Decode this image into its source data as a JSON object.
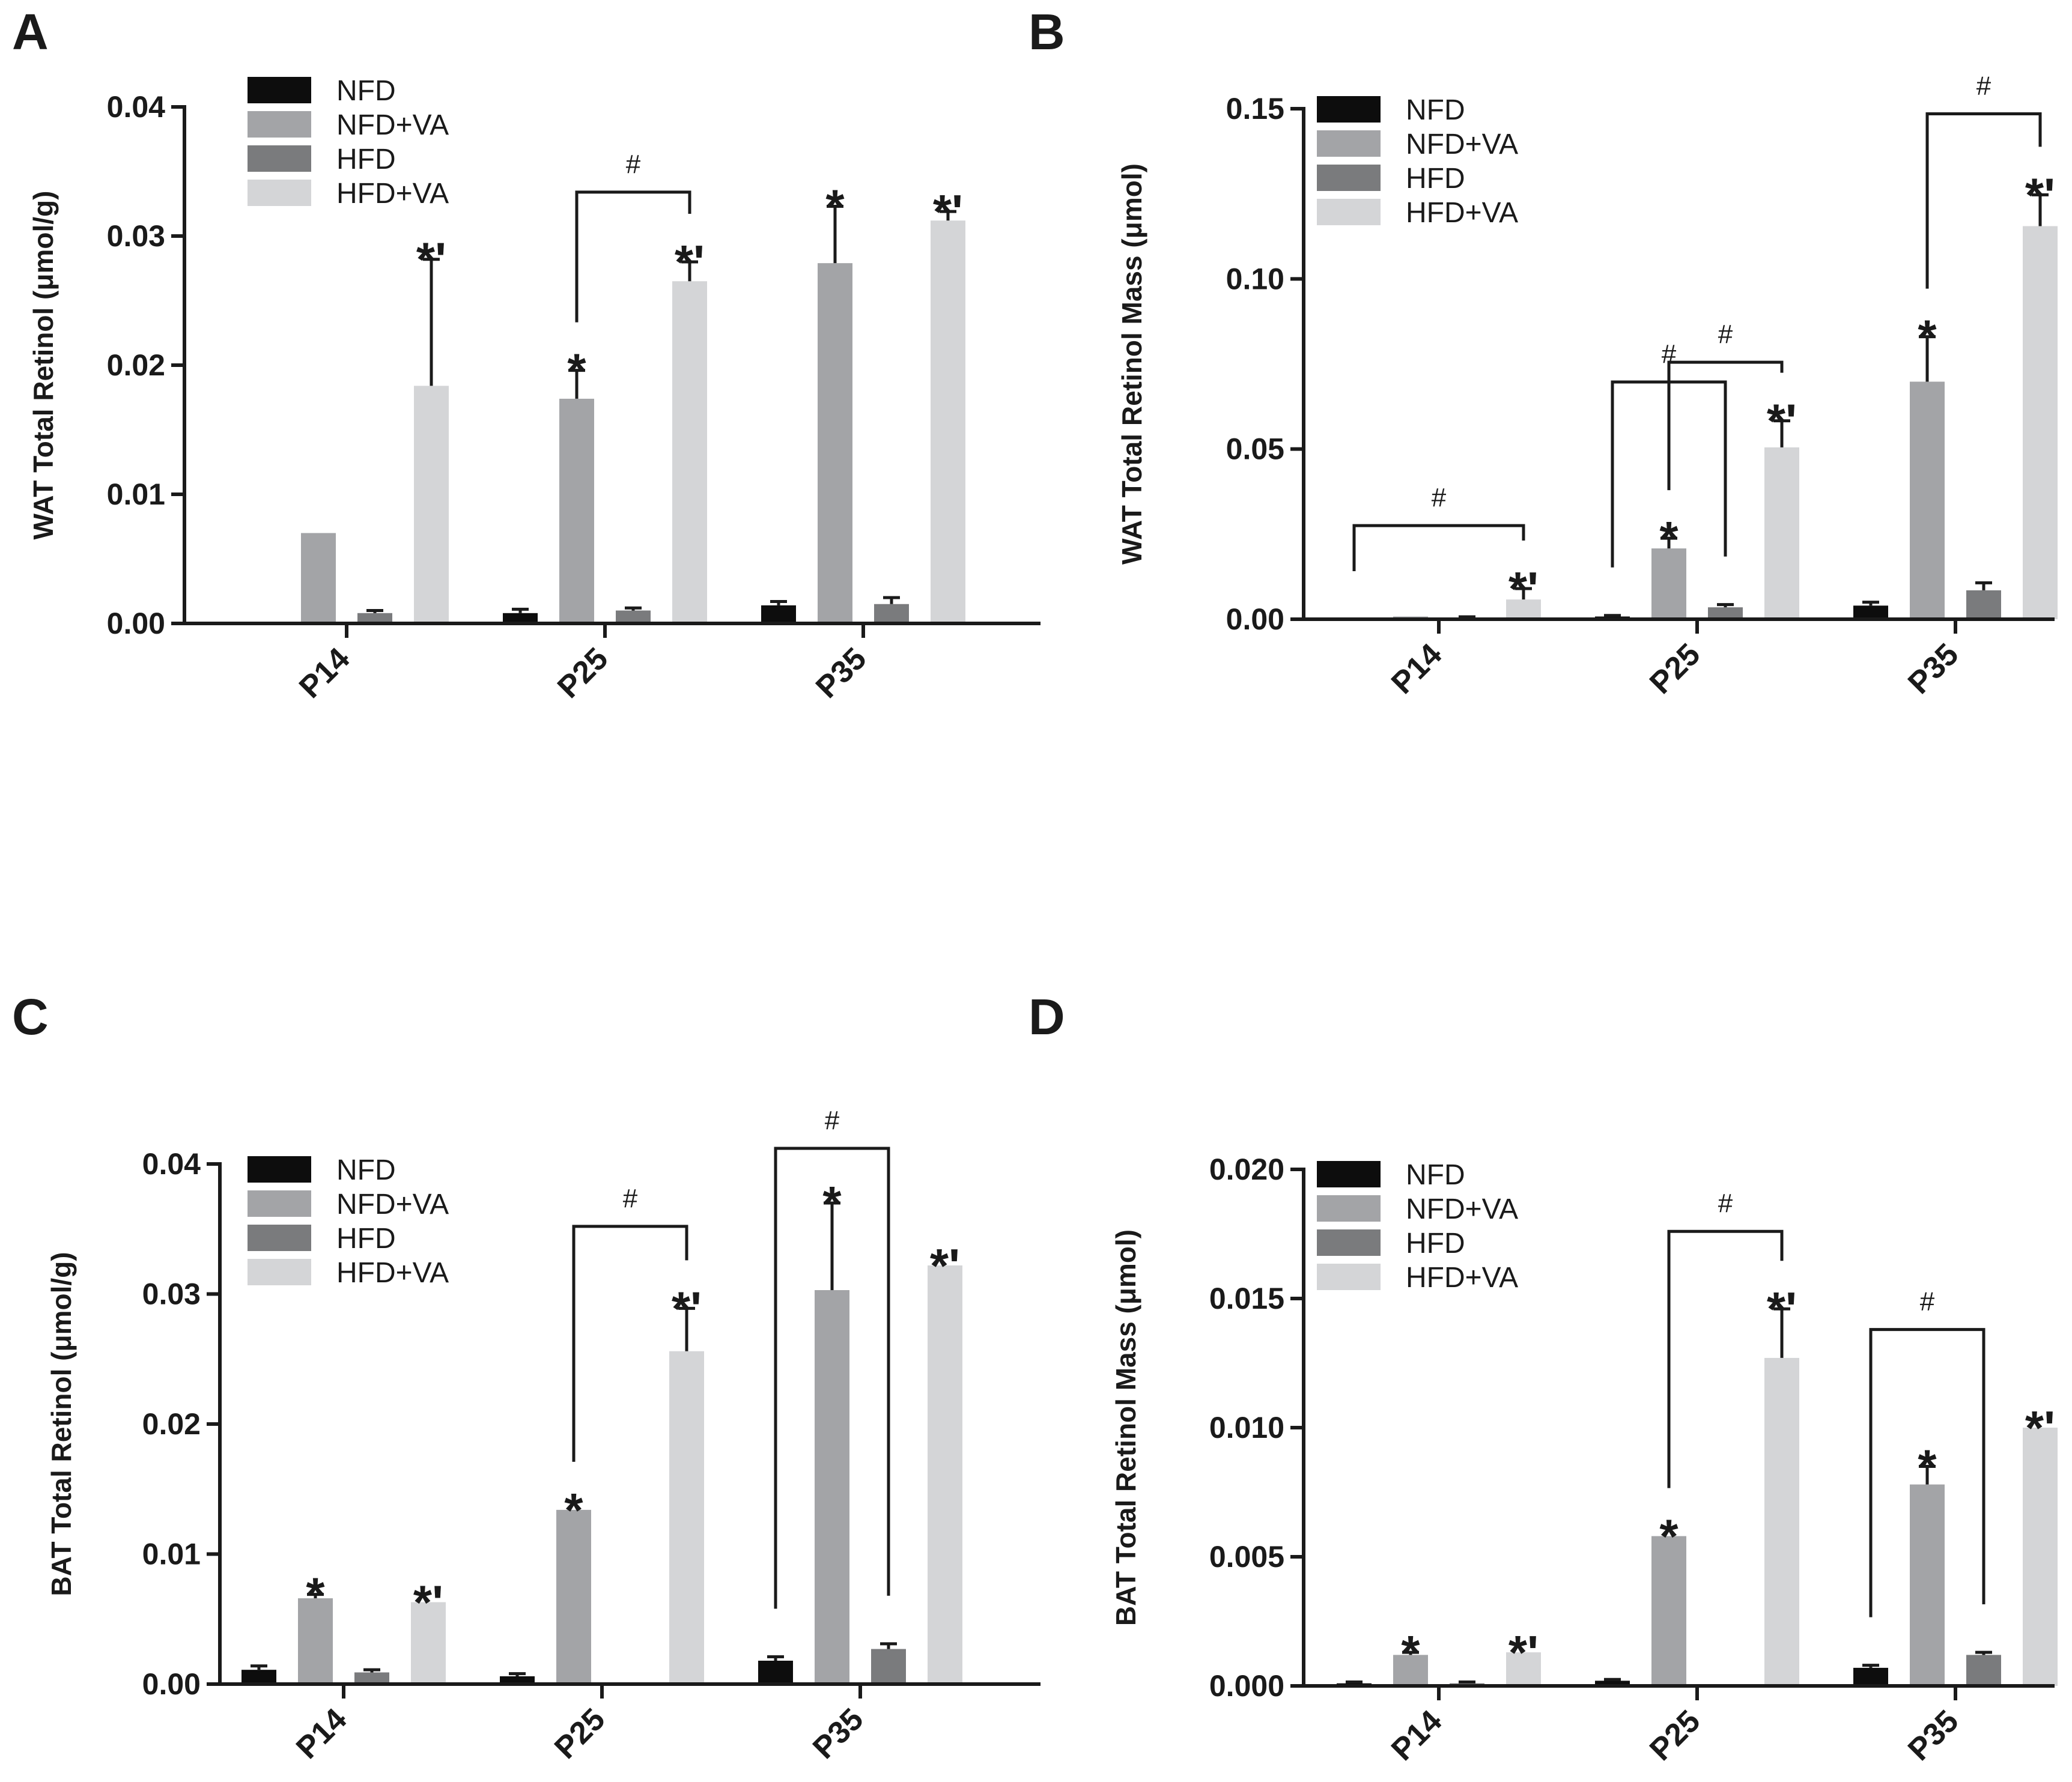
{
  "colors": {
    "NFD": "#0d0d0d",
    "NFD+VA": "#a3a4a7",
    "HFD": "#7a7b7d",
    "HFD+VA": "#d4d5d7",
    "axis": "#1a1a1a"
  },
  "chart_data": [
    {
      "panel": "A",
      "type": "bar",
      "ylabel": "WAT Total Retinol (μmol/g)",
      "categories": [
        "P14",
        "P25",
        "P35"
      ],
      "ylim": [
        0,
        0.04
      ],
      "yticks": [
        "0.00",
        "0.01",
        "0.02",
        "0.03",
        "0.04"
      ],
      "legend": [
        "NFD",
        "NFD+VA",
        "HFD",
        "HFD+VA"
      ],
      "series": [
        {
          "name": "NFD",
          "values": [
            0,
            0.0008,
            0.0014
          ],
          "errors": [
            0,
            0.0003,
            0.0003
          ]
        },
        {
          "name": "NFD+VA",
          "values": [
            0.007,
            0.0174,
            0.0279
          ],
          "errors": [
            0,
            0.0022,
            0.0044
          ]
        },
        {
          "name": "HFD",
          "values": [
            0.0008,
            0.001,
            0.0015
          ],
          "errors": [
            0.0002,
            0.0002,
            0.0005
          ]
        },
        {
          "name": "HFD+VA",
          "values": [
            0.0184,
            0.0265,
            0.0312
          ],
          "errors": [
            0.0098,
            0.0015,
            0.0007
          ]
        }
      ],
      "stars": [
        {
          "cat": 0,
          "series": 3,
          "label": "*'"
        },
        {
          "cat": 1,
          "series": 1,
          "label": "*"
        },
        {
          "cat": 1,
          "series": 3,
          "label": "*'"
        },
        {
          "cat": 2,
          "series": 1,
          "label": "*"
        },
        {
          "cat": 2,
          "series": 3,
          "label": "*'"
        }
      ],
      "brackets": [
        {
          "cat1": 1,
          "s1": 1,
          "cat2": 1,
          "s2": 3,
          "y": 0.0334,
          "label": "#"
        }
      ]
    },
    {
      "panel": "B",
      "type": "bar",
      "ylabel": "WAT Total Retinol Mass (μmol)",
      "categories": [
        "P14",
        "P25",
        "P35"
      ],
      "ylim": [
        0,
        0.15
      ],
      "yticks": [
        "0.00",
        "0.05",
        "0.10",
        "0.15"
      ],
      "legend": [
        "NFD",
        "NFD+VA",
        "HFD",
        "HFD+VA"
      ],
      "series": [
        {
          "name": "NFD",
          "values": [
            0,
            0.0008,
            0.004
          ],
          "errors": [
            0,
            0.0003,
            0.001
          ]
        },
        {
          "name": "NFD+VA",
          "values": [
            0.0008,
            0.0208,
            0.0698
          ],
          "errors": [
            0,
            0.003,
            0.0132
          ]
        },
        {
          "name": "HFD",
          "values": [
            0.0005,
            0.0035,
            0.0085
          ],
          "errors": [
            0.0002,
            0.0008,
            0.0022
          ]
        },
        {
          "name": "HFD+VA",
          "values": [
            0.0058,
            0.0505,
            0.1155
          ],
          "errors": [
            0.0032,
            0.0078,
            0.0092
          ]
        }
      ],
      "stars": [
        {
          "cat": 0,
          "series": 3,
          "label": "*'"
        },
        {
          "cat": 1,
          "series": 1,
          "label": "*"
        },
        {
          "cat": 1,
          "series": 3,
          "label": "*'"
        },
        {
          "cat": 2,
          "series": 1,
          "label": "*"
        },
        {
          "cat": 2,
          "series": 3,
          "label": "*'"
        }
      ],
      "brackets": [
        {
          "cat1": 0,
          "s1": 0,
          "cat2": 0,
          "s2": 3,
          "y": 0.0275,
          "label": "#"
        },
        {
          "cat1": 1,
          "s1": 0,
          "cat2": 1,
          "s2": 2,
          "y": 0.0697,
          "label": "#"
        },
        {
          "cat1": 1,
          "s1": 1,
          "cat2": 1,
          "s2": 3,
          "y": 0.0755,
          "label": "#"
        },
        {
          "cat1": 2,
          "s1": 1,
          "cat2": 2,
          "s2": 3,
          "y": 0.1485,
          "label": "#"
        }
      ]
    },
    {
      "panel": "C",
      "type": "bar",
      "ylabel": "BAT Total Retinol (μmol/g)",
      "categories": [
        "P14",
        "P25",
        "P35"
      ],
      "ylim": [
        0,
        0.04
      ],
      "yticks": [
        "0.00",
        "0.01",
        "0.02",
        "0.03",
        "0.04"
      ],
      "legend": [
        "NFD",
        "NFD+VA",
        "HFD",
        "HFD+VA"
      ],
      "series": [
        {
          "name": "NFD",
          "values": [
            0.0011,
            0.0006,
            0.0018
          ],
          "errors": [
            0.0003,
            0.0002,
            0.0003
          ]
        },
        {
          "name": "NFD+VA",
          "values": [
            0.0066,
            0.0134,
            0.0303
          ],
          "errors": [
            0.0003,
            0,
            0.0067
          ]
        },
        {
          "name": "HFD",
          "values": [
            0.0009,
            0.0001,
            0.0027
          ],
          "errors": [
            0.0002,
            0,
            0.0004
          ]
        },
        {
          "name": "HFD+VA",
          "values": [
            0.0063,
            0.0256,
            0.0322
          ],
          "errors": [
            0,
            0.0033,
            0
          ]
        }
      ],
      "stars": [
        {
          "cat": 0,
          "series": 1,
          "label": "*"
        },
        {
          "cat": 0,
          "series": 3,
          "label": "*'"
        },
        {
          "cat": 1,
          "series": 1,
          "label": "*"
        },
        {
          "cat": 1,
          "series": 3,
          "label": "*'"
        },
        {
          "cat": 2,
          "series": 1,
          "label": "*"
        },
        {
          "cat": 2,
          "series": 3,
          "label": "*'"
        }
      ],
      "brackets": [
        {
          "cat1": 1,
          "s1": 1,
          "cat2": 1,
          "s2": 3,
          "y": 0.0352,
          "label": "#"
        },
        {
          "cat1": 2,
          "s1": 0,
          "cat2": 2,
          "s2": 2,
          "y": 0.0412,
          "label": "#"
        }
      ]
    },
    {
      "panel": "D",
      "type": "bar",
      "ylabel": "BAT Total Retinol Mass (μmol)",
      "categories": [
        "P14",
        "P25",
        "P35"
      ],
      "ylim": [
        0,
        0.02
      ],
      "yticks": [
        "0.000",
        "0.005",
        "0.010",
        "0.015",
        "0.020"
      ],
      "legend": [
        "NFD",
        "NFD+VA",
        "HFD",
        "HFD+VA"
      ],
      "series": [
        {
          "name": "NFD",
          "values": [
            0.0001,
            0.0002,
            0.0007
          ],
          "errors": [
            5e-05,
            5e-05,
            0.0001
          ]
        },
        {
          "name": "NFD+VA",
          "values": [
            0.0012,
            0.0058,
            0.0078
          ],
          "errors": [
            0.0001,
            0,
            0.0007
          ]
        },
        {
          "name": "HFD",
          "values": [
            0.0001,
            0,
            0.0012
          ],
          "errors": [
            5e-05,
            0,
            0.0001
          ]
        },
        {
          "name": "HFD+VA",
          "values": [
            0.0013,
            0.0127,
            0.01
          ],
          "errors": [
            0,
            0.0019,
            0
          ]
        }
      ],
      "stars": [
        {
          "cat": 0,
          "series": 1,
          "label": "*"
        },
        {
          "cat": 0,
          "series": 3,
          "label": "*'"
        },
        {
          "cat": 1,
          "series": 1,
          "label": "*"
        },
        {
          "cat": 1,
          "series": 3,
          "label": "*'"
        },
        {
          "cat": 2,
          "series": 1,
          "label": "*"
        },
        {
          "cat": 2,
          "series": 3,
          "label": "*'"
        }
      ],
      "brackets": [
        {
          "cat1": 1,
          "s1": 1,
          "cat2": 1,
          "s2": 3,
          "y": 0.0176,
          "label": "#"
        },
        {
          "cat1": 2,
          "s1": 0,
          "cat2": 2,
          "s2": 2,
          "y": 0.0138,
          "label": "#"
        }
      ]
    }
  ]
}
